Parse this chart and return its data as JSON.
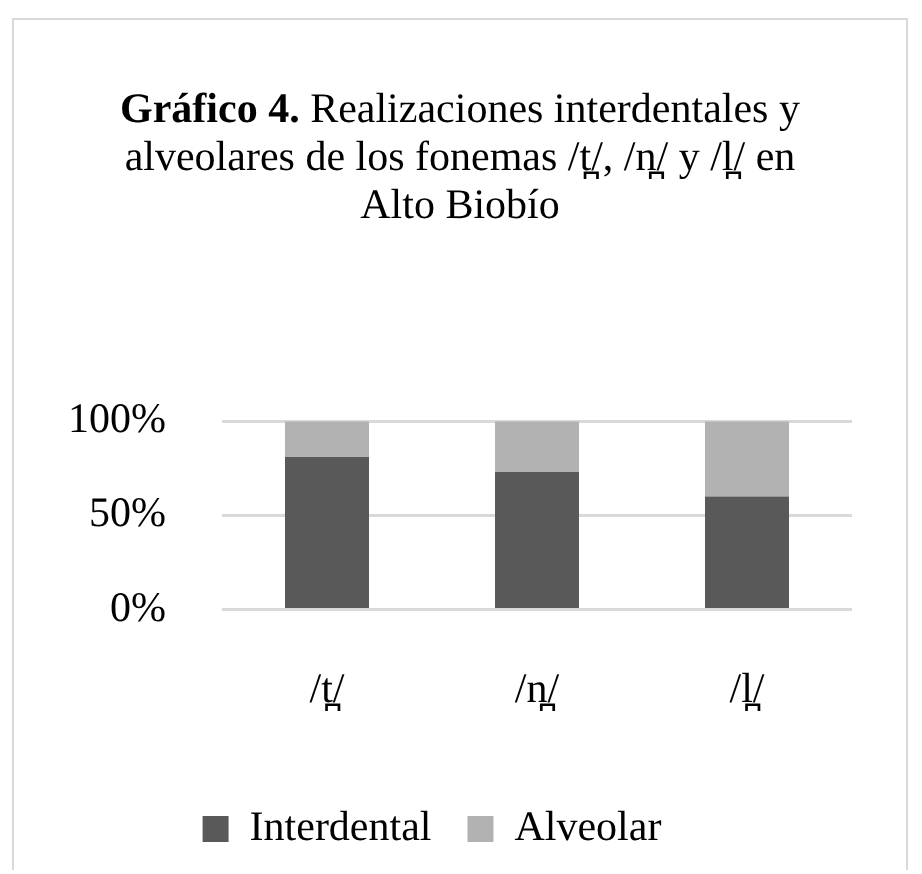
{
  "chart_data": {
    "type": "bar",
    "title": "Gráfico 4. Realizaciones interdentales y alveolares de los fonemas /t̪/, /n̪/ y /l̪/ en Alto Biobío",
    "categories": [
      "/t̪/",
      "/n̪/",
      "/l̪/"
    ],
    "series": [
      {
        "name": "Interdental",
        "color": "#595959",
        "values": [
          81,
          73,
          60
        ]
      },
      {
        "name": "Alveolar",
        "color": "#b2b2b2",
        "values": [
          19,
          27,
          40
        ]
      }
    ],
    "stacked": true,
    "ylim": [
      0,
      100
    ],
    "yticks": [
      {
        "value": 0,
        "label": "0%"
      },
      {
        "value": 50,
        "label": "50%"
      },
      {
        "value": 100,
        "label": "100%"
      }
    ],
    "grid": "y",
    "legend": "bottom"
  }
}
